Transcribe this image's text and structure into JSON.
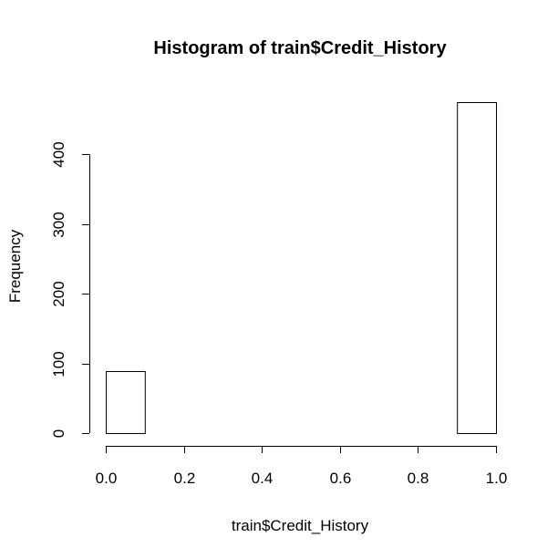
{
  "chart_data": {
    "type": "bar",
    "title": "Histogram of train$Credit_History",
    "xlabel": "train$Credit_History",
    "ylabel": "Frequency",
    "xlim": [
      0.0,
      1.0
    ],
    "ylim": [
      0,
      475
    ],
    "x_ticks": [
      0.0,
      0.2,
      0.4,
      0.6,
      0.8,
      1.0
    ],
    "x_tick_labels": [
      "0.0",
      "0.2",
      "0.4",
      "0.6",
      "0.8",
      "1.0"
    ],
    "y_ticks": [
      0,
      100,
      200,
      300,
      400
    ],
    "y_tick_labels": [
      "0",
      "100",
      "200",
      "300",
      "400"
    ],
    "bins": [
      {
        "start": 0.0,
        "end": 0.1,
        "count": 89
      },
      {
        "start": 0.1,
        "end": 0.2,
        "count": 0
      },
      {
        "start": 0.2,
        "end": 0.3,
        "count": 0
      },
      {
        "start": 0.3,
        "end": 0.4,
        "count": 0
      },
      {
        "start": 0.4,
        "end": 0.5,
        "count": 0
      },
      {
        "start": 0.5,
        "end": 0.6,
        "count": 0
      },
      {
        "start": 0.6,
        "end": 0.7,
        "count": 0
      },
      {
        "start": 0.7,
        "end": 0.8,
        "count": 0
      },
      {
        "start": 0.8,
        "end": 0.9,
        "count": 0
      },
      {
        "start": 0.9,
        "end": 1.0,
        "count": 475
      }
    ],
    "grid": false,
    "legend": "none",
    "bar_fill": "#ffffff",
    "bar_stroke": "#000000"
  }
}
